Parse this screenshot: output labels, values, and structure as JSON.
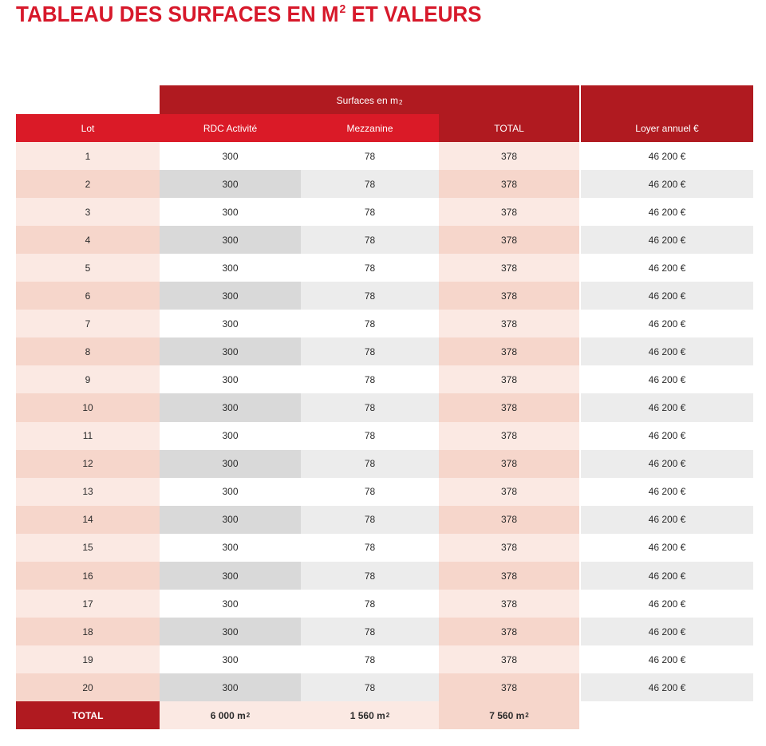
{
  "title": {
    "main": "TABLEAU DES SURFACES EN M",
    "sup": "2",
    "rest": " ET VALEURS"
  },
  "header": {
    "group": {
      "text": "Surfaces en m",
      "sup": "2"
    },
    "lot": "Lot",
    "rdc": "RDC Activité",
    "mezz": "Mezzanine",
    "total": "TOTAL",
    "loyer": "Loyer annuel €"
  },
  "rows": [
    {
      "lot": "1",
      "rdc": "300",
      "mezz": "78",
      "total": "378",
      "loyer": "46 200 €"
    },
    {
      "lot": "2",
      "rdc": "300",
      "mezz": "78",
      "total": "378",
      "loyer": "46 200 €"
    },
    {
      "lot": "3",
      "rdc": "300",
      "mezz": "78",
      "total": "378",
      "loyer": "46 200 €"
    },
    {
      "lot": "4",
      "rdc": "300",
      "mezz": "78",
      "total": "378",
      "loyer": "46 200 €"
    },
    {
      "lot": "5",
      "rdc": "300",
      "mezz": "78",
      "total": "378",
      "loyer": "46 200 €"
    },
    {
      "lot": "6",
      "rdc": "300",
      "mezz": "78",
      "total": "378",
      "loyer": "46 200 €"
    },
    {
      "lot": "7",
      "rdc": "300",
      "mezz": "78",
      "total": "378",
      "loyer": "46 200 €"
    },
    {
      "lot": "8",
      "rdc": "300",
      "mezz": "78",
      "total": "378",
      "loyer": "46 200 €"
    },
    {
      "lot": "9",
      "rdc": "300",
      "mezz": "78",
      "total": "378",
      "loyer": "46 200 €"
    },
    {
      "lot": "10",
      "rdc": "300",
      "mezz": "78",
      "total": "378",
      "loyer": "46 200 €"
    },
    {
      "lot": "11",
      "rdc": "300",
      "mezz": "78",
      "total": "378",
      "loyer": "46 200 €"
    },
    {
      "lot": "12",
      "rdc": "300",
      "mezz": "78",
      "total": "378",
      "loyer": "46 200 €"
    },
    {
      "lot": "13",
      "rdc": "300",
      "mezz": "78",
      "total": "378",
      "loyer": "46 200 €"
    },
    {
      "lot": "14",
      "rdc": "300",
      "mezz": "78",
      "total": "378",
      "loyer": "46 200 €"
    },
    {
      "lot": "15",
      "rdc": "300",
      "mezz": "78",
      "total": "378",
      "loyer": "46 200 €"
    },
    {
      "lot": "16",
      "rdc": "300",
      "mezz": "78",
      "total": "378",
      "loyer": "46 200 €"
    },
    {
      "lot": "17",
      "rdc": "300",
      "mezz": "78",
      "total": "378",
      "loyer": "46 200 €"
    },
    {
      "lot": "18",
      "rdc": "300",
      "mezz": "78",
      "total": "378",
      "loyer": "46 200 €"
    },
    {
      "lot": "19",
      "rdc": "300",
      "mezz": "78",
      "total": "378",
      "loyer": "46 200 €"
    },
    {
      "lot": "20",
      "rdc": "300",
      "mezz": "78",
      "total": "378",
      "loyer": "46 200 €"
    }
  ],
  "footer": {
    "label": "TOTAL",
    "rdc": {
      "value": "6 000 m",
      "sup": "2"
    },
    "mezz": {
      "value": "1 560 m",
      "sup": "2"
    },
    "total": {
      "value": "7 560 m",
      "sup": "2"
    }
  },
  "colors": {
    "accent_red": "#da1a27",
    "dark_red": "#b01a20",
    "title_red": "#d7192b",
    "pink_light": "#fbe9e3",
    "pink_mid": "#f6d6cb",
    "grey_dark": "#d9d9d9",
    "grey_light": "#ececec"
  }
}
